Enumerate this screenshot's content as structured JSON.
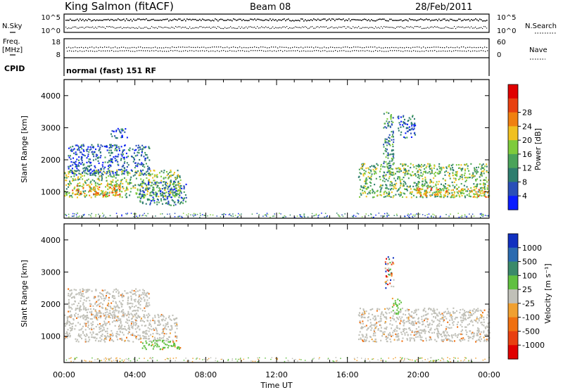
{
  "header": {
    "station": "King Salmon (fitACF)",
    "beam": "Beam 08",
    "date": "28/Feb/2011"
  },
  "status_panels": {
    "nsky_label": "N.Sky",
    "nsearch_label": "N.Search",
    "noise_ticks": [
      "10^5",
      "10^0"
    ],
    "freq_label": "Freq.",
    "freq_unit": "[MHz]",
    "freq_ticks": [
      "18",
      "8"
    ],
    "nave_label": "Nave",
    "nave_ticks": [
      "60",
      "0"
    ],
    "cpid_label": "CPID",
    "cpid_value": "normal (fast) 151 RF"
  },
  "colors": {
    "power": [
      "#0a1cff",
      "#2a4fb8",
      "#2e7d6e",
      "#4aa35a",
      "#7ecb3c",
      "#f0c020",
      "#f08010",
      "#e84010",
      "#e00000"
    ],
    "velocity": [
      "#1030c0",
      "#2a6ab0",
      "#3a8a6a",
      "#60c040",
      "#c0c0b8",
      "#f0a030",
      "#f07010",
      "#e84010",
      "#e00000"
    ]
  },
  "chart_data": [
    {
      "type": "heatmap",
      "name": "power",
      "ylabel": "Slant Range [km]",
      "xlabel": "Time UT",
      "x_ticks": [
        "00:00",
        "04:00",
        "08:00",
        "12:00",
        "16:00",
        "20:00",
        "00:00"
      ],
      "xlim_hours": [
        0,
        24
      ],
      "y_ticks": [
        1000,
        2000,
        3000,
        4000
      ],
      "ylim_km": [
        180,
        4500
      ],
      "colorbar_label": "Power [dB]",
      "colorbar_ticks": [
        "4",
        "8",
        "12",
        "16",
        "20",
        "24",
        "28"
      ],
      "crange": [
        0,
        30
      ],
      "scatter_regions": [
        {
          "t0": 0.0,
          "t1": 6.6,
          "r0": 850,
          "r1": 1700,
          "level": 14
        },
        {
          "t0": 0.4,
          "t1": 3.2,
          "r0": 900,
          "r1": 1250,
          "level": 20
        },
        {
          "t0": 0.2,
          "t1": 4.8,
          "r0": 1550,
          "r1": 2500,
          "level": 6
        },
        {
          "t0": 2.6,
          "t1": 3.6,
          "r0": 2700,
          "r1": 3000,
          "level": 5
        },
        {
          "t0": 4.2,
          "t1": 6.9,
          "r0": 600,
          "r1": 1350,
          "level": 8
        },
        {
          "t0": 16.6,
          "t1": 24.0,
          "r0": 850,
          "r1": 1900,
          "level": 13
        },
        {
          "t0": 19.8,
          "t1": 24.0,
          "r0": 850,
          "r1": 1150,
          "level": 19
        },
        {
          "t0": 18.0,
          "t1": 18.6,
          "r0": 1500,
          "r1": 3500,
          "level": 10
        },
        {
          "t0": 18.8,
          "t1": 19.8,
          "r0": 2700,
          "r1": 3400,
          "level": 6
        }
      ]
    },
    {
      "type": "heatmap",
      "name": "velocity",
      "ylabel": "Slant Range [km]",
      "xlabel": "Time UT",
      "x_ticks": [
        "00:00",
        "04:00",
        "08:00",
        "12:00",
        "16:00",
        "20:00",
        "00:00"
      ],
      "xlim_hours": [
        0,
        24
      ],
      "y_ticks": [
        1000,
        2000,
        3000,
        4000
      ],
      "ylim_km": [
        180,
        4500
      ],
      "colorbar_label": "Velocity [m s⁻¹]",
      "colorbar_ticks": [
        "1000",
        "500",
        "100",
        "25",
        "-25",
        "-100",
        "-500",
        "-1000"
      ],
      "scatter_regions": [
        {
          "t0": 0.0,
          "t1": 6.4,
          "r0": 850,
          "r1": 1700,
          "level": "ground"
        },
        {
          "t0": 0.2,
          "t1": 4.8,
          "r0": 1600,
          "r1": 2500,
          "level": "ground"
        },
        {
          "t0": 4.3,
          "t1": 6.6,
          "r0": 600,
          "r1": 900,
          "level": "+100"
        },
        {
          "t0": 16.6,
          "t1": 24.0,
          "r0": 850,
          "r1": 1900,
          "level": "ground"
        },
        {
          "t0": 18.1,
          "t1": 18.6,
          "r0": 2500,
          "r1": 3500,
          "level": "mixed"
        },
        {
          "t0": 18.5,
          "t1": 19.0,
          "r0": 1700,
          "r1": 2200,
          "level": "+100"
        }
      ]
    }
  ]
}
